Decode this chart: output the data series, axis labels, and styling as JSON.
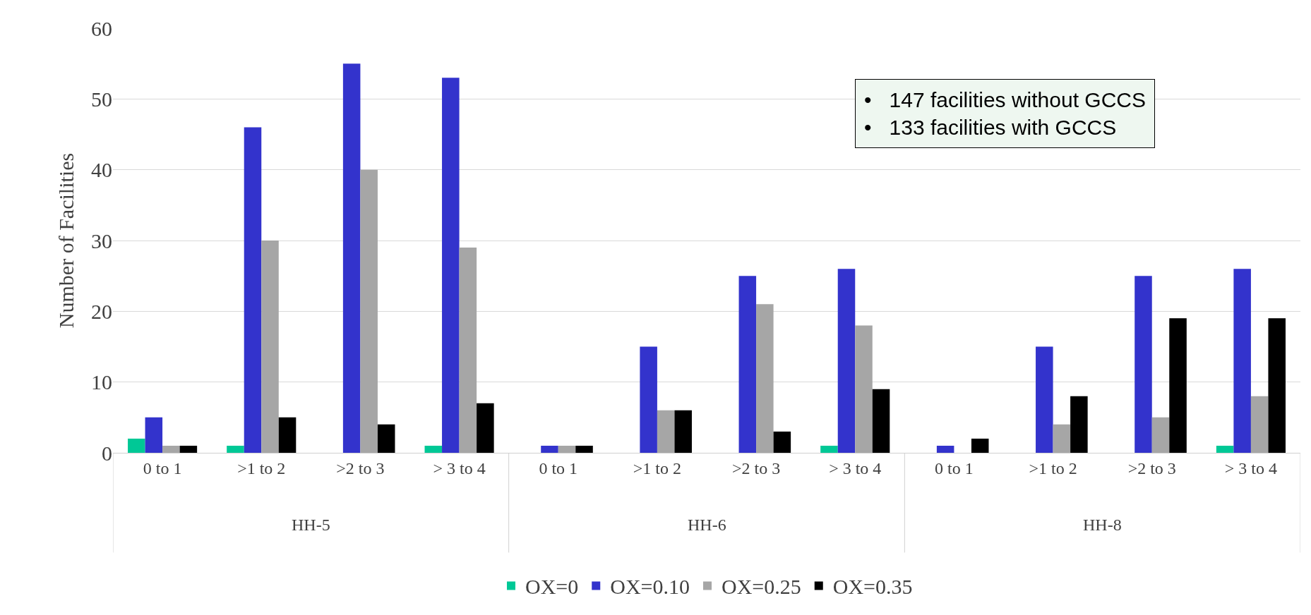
{
  "chart_data": {
    "type": "bar",
    "ylabel": "Number of Facilities",
    "categories": [
      "0 to 1",
      ">1 to 2",
      ">2 to 3",
      "> 3 to 4",
      "0 to 1",
      ">1 to 2",
      ">2 to 3",
      "> 3 to 4",
      "0 to 1",
      ">1 to 2",
      ">2 to 3",
      "> 3 to 4"
    ],
    "series": [
      {
        "name": "OX=0",
        "color": "#00c896",
        "values": [
          2,
          1,
          0,
          1,
          0,
          0,
          0,
          1,
          0,
          0,
          0,
          1
        ]
      },
      {
        "name": "OX=0.10",
        "color": "#3333cc",
        "values": [
          5,
          46,
          55,
          53,
          1,
          15,
          25,
          26,
          1,
          15,
          25,
          26
        ]
      },
      {
        "name": "OX=0.25",
        "color": "#a6a6a6",
        "values": [
          1,
          30,
          40,
          29,
          1,
          6,
          21,
          18,
          0,
          4,
          5,
          8
        ]
      },
      {
        "name": "OX=0.35",
        "color": "#000000",
        "values": [
          1,
          5,
          4,
          7,
          1,
          6,
          3,
          9,
          2,
          8,
          19,
          19
        ]
      }
    ],
    "ylim": [
      0,
      60
    ],
    "yticks": [
      0,
      10,
      20,
      30,
      40,
      50,
      60
    ],
    "grid": "y",
    "legend": "bottom",
    "annotations": [
      "•   147 facilities without GCCS\n•   133 facilities with GCCS",
      "HH-5",
      "HH-6",
      "HH-8"
    ]
  }
}
